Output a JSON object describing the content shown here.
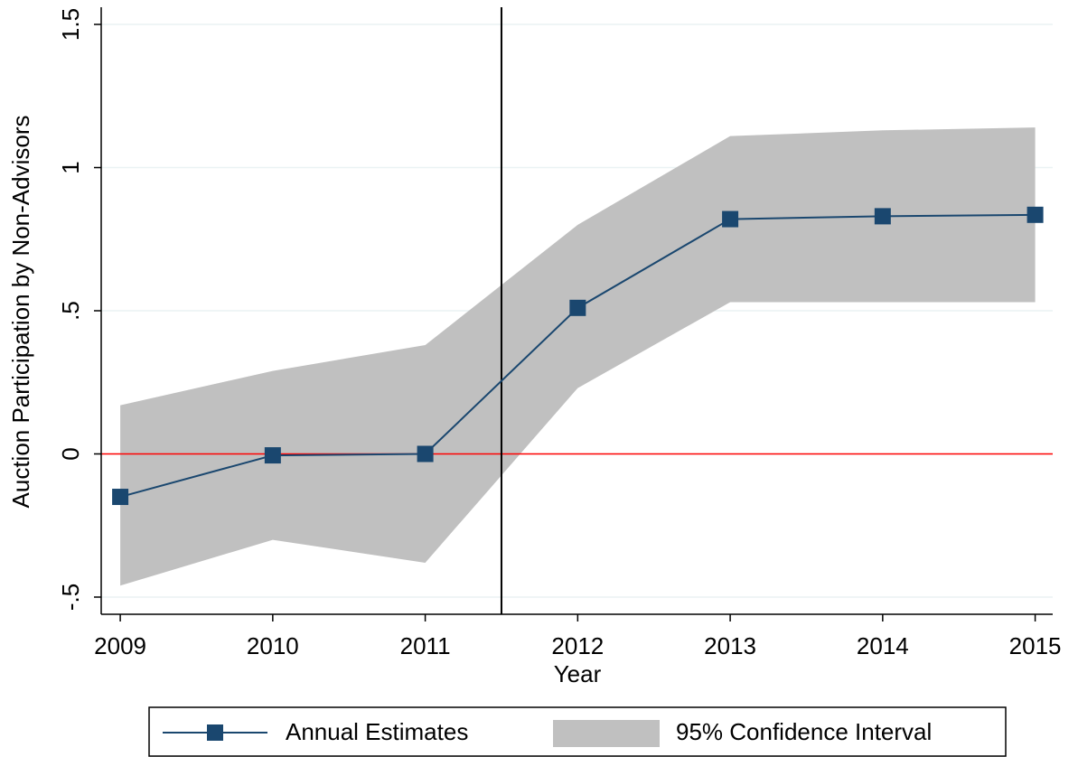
{
  "chart_data": {
    "type": "line",
    "x_label": "Year",
    "y_label": "Auction Participation by Non-Advisors",
    "x": [
      2009,
      2010,
      2011,
      2012,
      2013,
      2014,
      2015
    ],
    "xlim": [
      2008.875,
      2015.115
    ],
    "xticks": [
      2009,
      2010,
      2011,
      2012,
      2013,
      2014,
      2015
    ],
    "ylim": [
      -0.56,
      1.56
    ],
    "yticks": [
      {
        "value": -0.5,
        "label": "-.5"
      },
      0,
      {
        "value": 0.5,
        "label": ".5"
      },
      1,
      {
        "value": 1.5,
        "label": "1.5"
      }
    ],
    "grid": true,
    "series": [
      {
        "name": "Annual Estimates",
        "color": "#1a476f",
        "values": [
          -0.15,
          -0.005,
          0,
          0.51,
          0.82,
          0.83,
          0.835
        ]
      }
    ],
    "band": {
      "name": "95% Confidence Interval",
      "color": "#c0c0c0",
      "lower": [
        -0.46,
        -0.3,
        -0.38,
        0.23,
        0.53,
        0.53,
        0.53
      ],
      "upper": [
        0.17,
        0.29,
        0.38,
        0.8,
        1.11,
        1.13,
        1.14
      ]
    },
    "vline": {
      "value": 2011.5,
      "color": "#000000"
    },
    "hline": {
      "value": 0,
      "color": "#ff0000"
    }
  }
}
